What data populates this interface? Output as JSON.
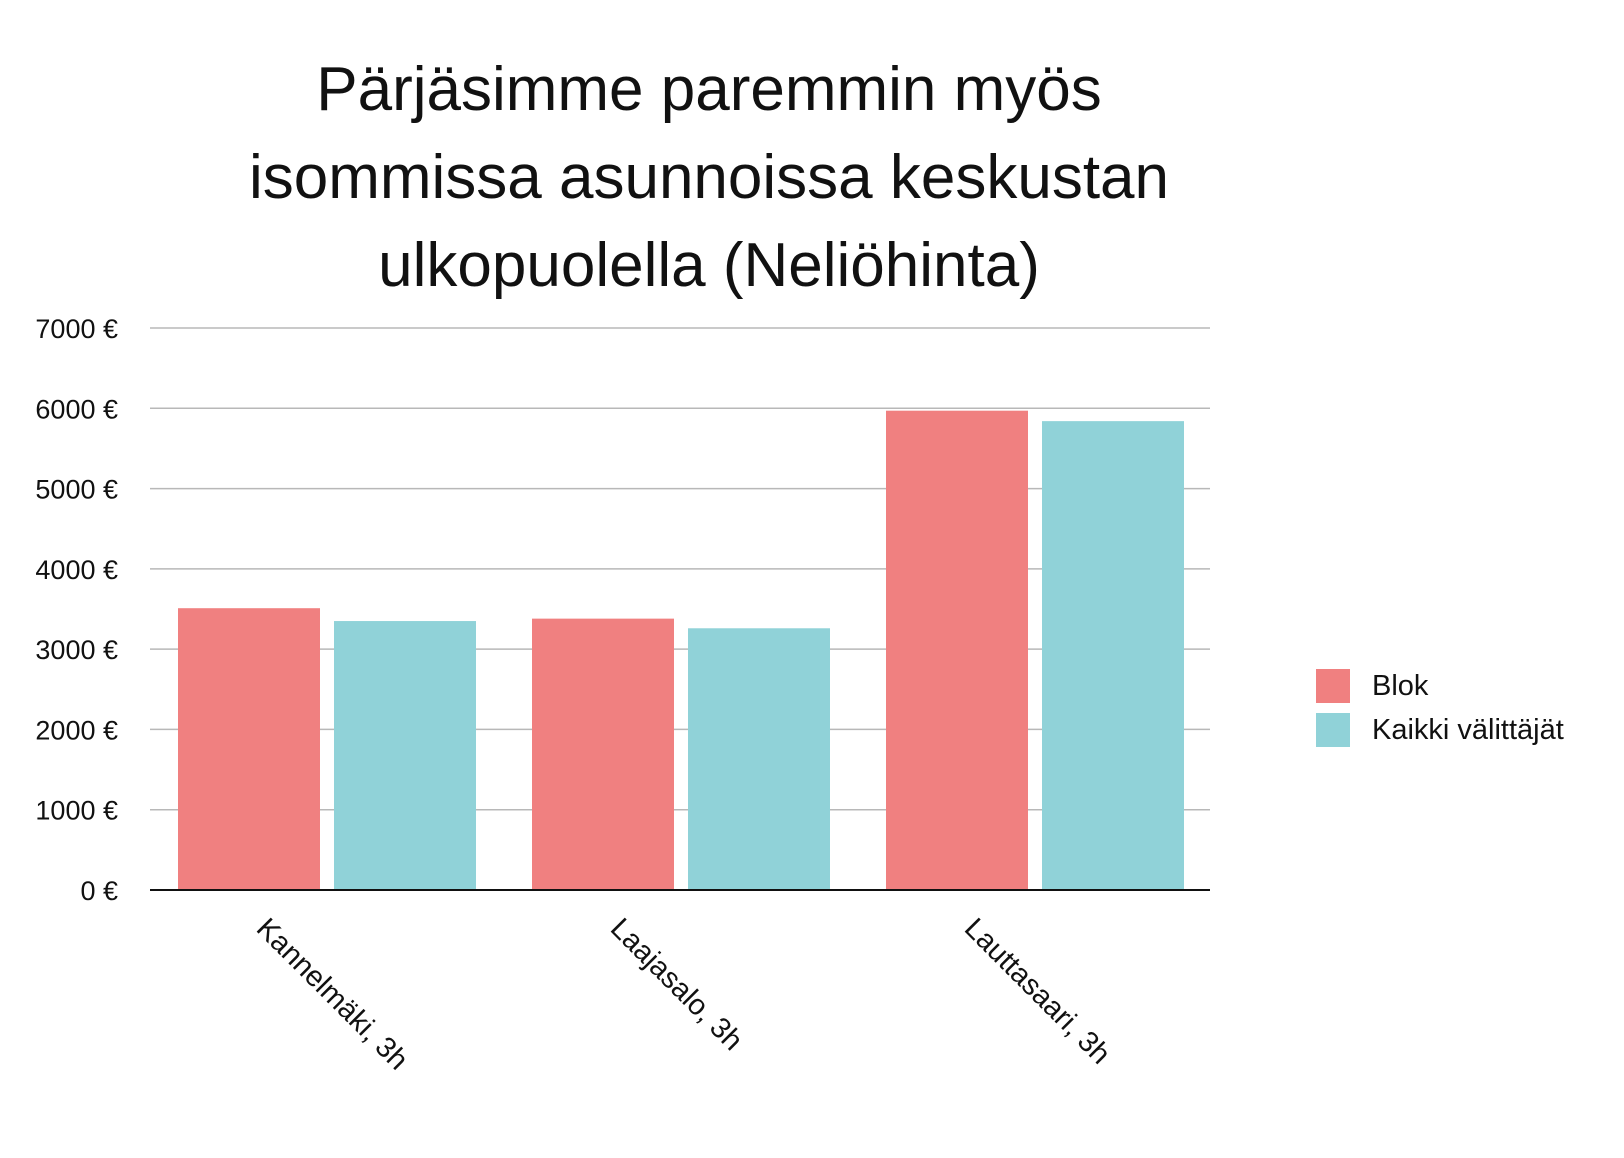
{
  "title_lines": [
    "Pärjäsimme paremmin myös",
    "isommissa asunnoissa keskustan",
    "ulkopuolella (Neliöhinta)"
  ],
  "colors": {
    "Blok": "#f08080",
    "Kaikki välittäjät": "#90d2d8",
    "grid": "#b8b8b8",
    "axis": "#111111"
  },
  "chart_data": {
    "type": "bar",
    "title": "Pärjäsimme paremmin myös isommissa asunnoissa keskustan ulkopuolella (Neliöhinta)",
    "categories": [
      "Kannelmäki, 3h",
      "Laajasalo, 3h",
      "Lauttasaari, 3h"
    ],
    "series": [
      {
        "name": "Blok",
        "values": [
          3510,
          3380,
          5970
        ]
      },
      {
        "name": "Kaikki välittäjät",
        "values": [
          3350,
          3260,
          5840
        ]
      }
    ],
    "ylim": [
      0,
      7000
    ],
    "yticks": [
      0,
      1000,
      2000,
      3000,
      4000,
      5000,
      6000,
      7000
    ],
    "ytick_labels": [
      "0 €",
      "1000 €",
      "2000 €",
      "3000 €",
      "4000 €",
      "5000 €",
      "6000 €",
      "7000 €"
    ],
    "xlabel": "",
    "ylabel": "",
    "grid": true,
    "legend_position": "right"
  }
}
